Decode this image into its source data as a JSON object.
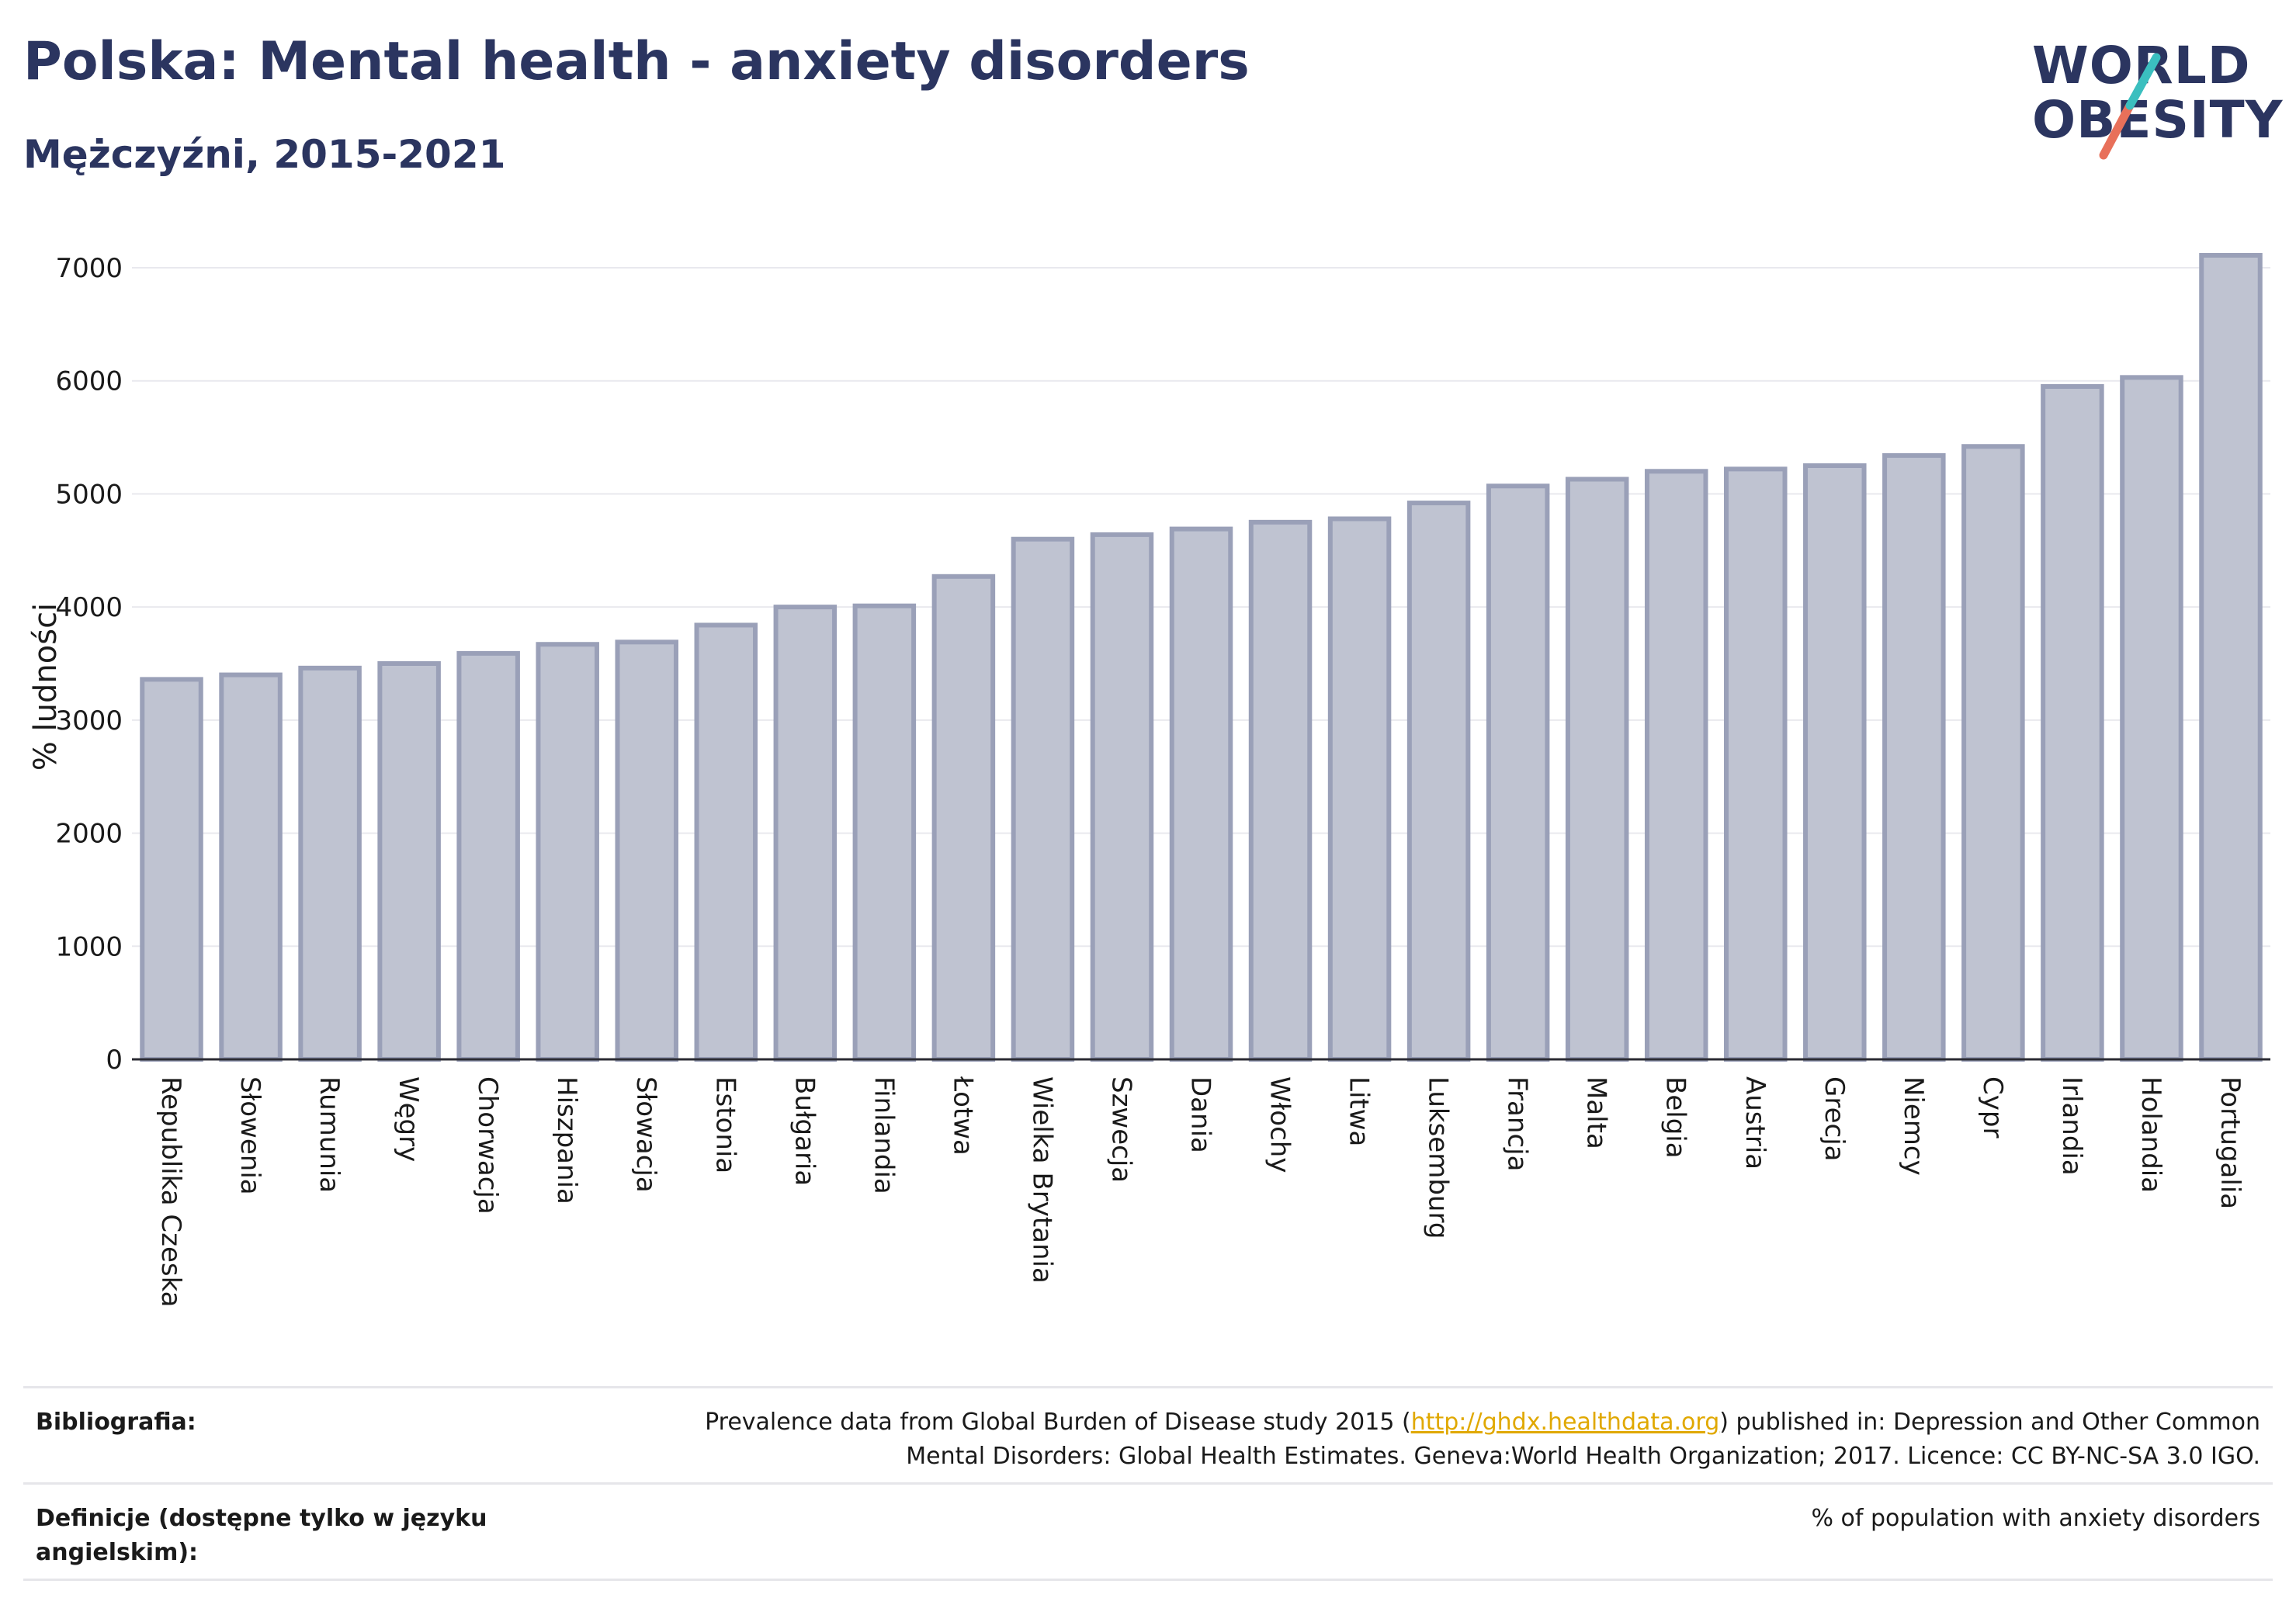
{
  "header": {
    "title": "Polska: Mental health - anxiety disorders",
    "subtitle": "Mężczyźni, 2015-2021"
  },
  "logo": {
    "line1": "WORLD",
    "line2": "OBESITY"
  },
  "colors": {
    "bar_fill": "#bfc3d1",
    "bar_stroke": "#9aa0b8",
    "text": "#2b3560",
    "logo_teal": "#3bbfbf",
    "logo_red": "#e8705a",
    "link": "#e0a800"
  },
  "chart_data": {
    "type": "bar",
    "ylabel": "% ludności",
    "ylim": [
      0,
      7000
    ],
    "yticks": [
      0,
      1000,
      2000,
      3000,
      4000,
      5000,
      6000,
      7000
    ],
    "grid": true,
    "categories": [
      "Republika Czeska",
      "Słowenia",
      "Rumunia",
      "Węgry",
      "Chorwacja",
      "Hiszpania",
      "Słowacja",
      "Estonia",
      "Bułgaria",
      "Finlandia",
      "Łotwa",
      "Wielka Brytania",
      "Szwecja",
      "Dania",
      "Włochy",
      "Litwa",
      "Luksemburg",
      "Francja",
      "Malta",
      "Belgia",
      "Austria",
      "Grecja",
      "Niemcy",
      "Cypr",
      "Irlandia",
      "Holandia",
      "Portugalia"
    ],
    "values": [
      3360,
      3400,
      3460,
      3500,
      3590,
      3670,
      3690,
      3840,
      4000,
      4010,
      4270,
      4600,
      4640,
      4690,
      4750,
      4780,
      4920,
      5070,
      5130,
      5200,
      5220,
      5250,
      5340,
      5420,
      5950,
      6030,
      7110
    ]
  },
  "footer": {
    "bibliography_label": "Bibliografia:",
    "bibliography_pre": "Prevalence data from Global Burden of Disease study 2015 (",
    "bibliography_link": "http://ghdx.healthdata.org",
    "bibliography_post": ") published in: Depression and Other Common",
    "bibliography_line2": "Mental Disorders: Global Health Estimates. Geneva:World Health Organization; 2017. Licence: CC BY-NC-SA 3.0 IGO.",
    "definitions_label_line1": "Definicje (dostępne tylko w języku",
    "definitions_label_line2": "angielskim):",
    "definitions_value": "% of population with anxiety disorders"
  }
}
